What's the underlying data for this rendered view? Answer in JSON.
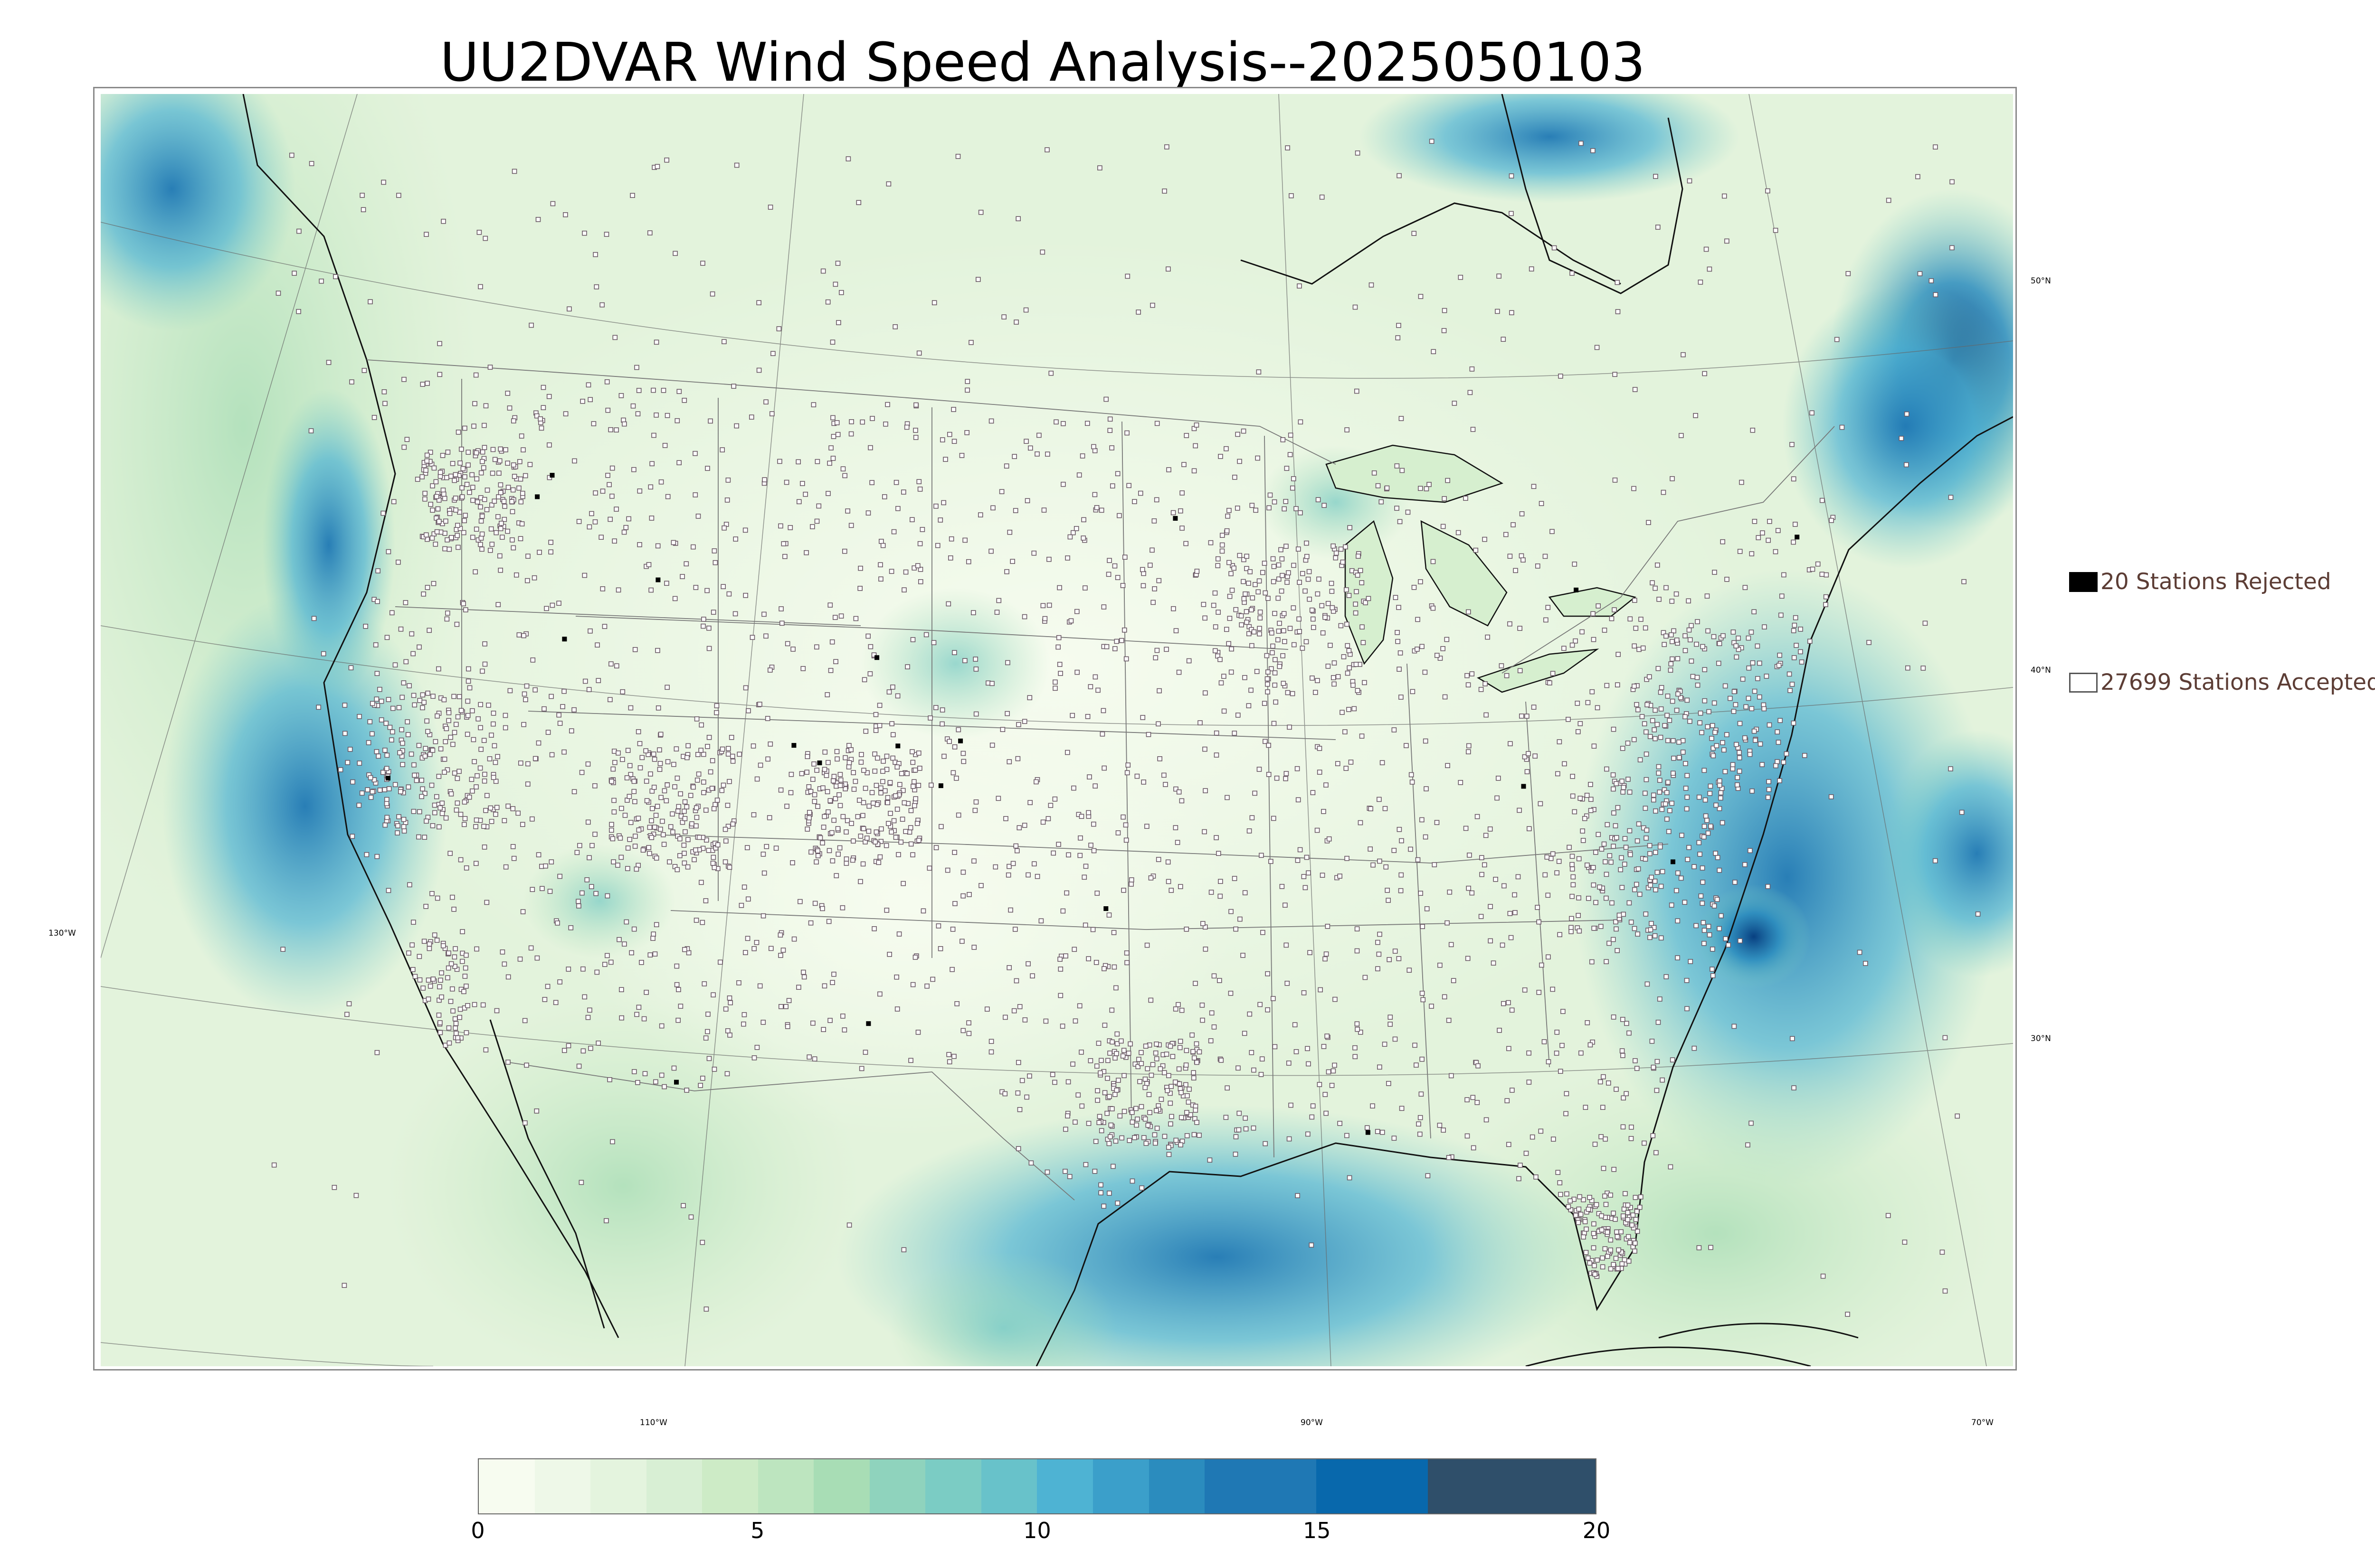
{
  "title": "UU2DVAR Wind Speed Analysis--2025050103",
  "map": {
    "lat_labels": [
      "50°N",
      "40°N",
      "30°N"
    ],
    "lon_labels": [
      "130°W",
      "110°W",
      "90°W",
      "70°W"
    ],
    "colors": {
      "background_wind": "#dff1d9",
      "ocean_wind_high": "#2b8cbe",
      "coast": "#111111",
      "state_border": "#777777",
      "graticule": "#666666",
      "station_accepted": "#6b5a66",
      "station_rejected": "#000000"
    }
  },
  "legend": {
    "rejected": {
      "label": "20 Stations Rejected",
      "color": "#000000"
    },
    "accepted": {
      "label": "27699 Stations Accepted",
      "color": "#ffffff"
    }
  },
  "colorbar": {
    "ticks": [
      "0",
      "5",
      "10",
      "15",
      "20"
    ],
    "min": 0,
    "max": 20,
    "colors": [
      "#f7fcf0",
      "#eef8e8",
      "#e4f4de",
      "#d8efd4",
      "#cdebc6",
      "#bde5bf",
      "#a8ddb5",
      "#8fd3bd",
      "#7bccc4",
      "#68c2ca",
      "#4eb3d3",
      "#3b9fca",
      "#2b8cbe",
      "#1f78b4",
      "#0868ac",
      "#2f4f6a"
    ],
    "bounds": [
      0,
      1,
      2,
      3,
      4,
      5,
      6,
      7,
      8,
      9,
      10,
      11,
      12,
      13,
      15,
      17,
      20
    ]
  },
  "stations": {
    "accepted_count": 27699,
    "rejected_count": 20
  }
}
